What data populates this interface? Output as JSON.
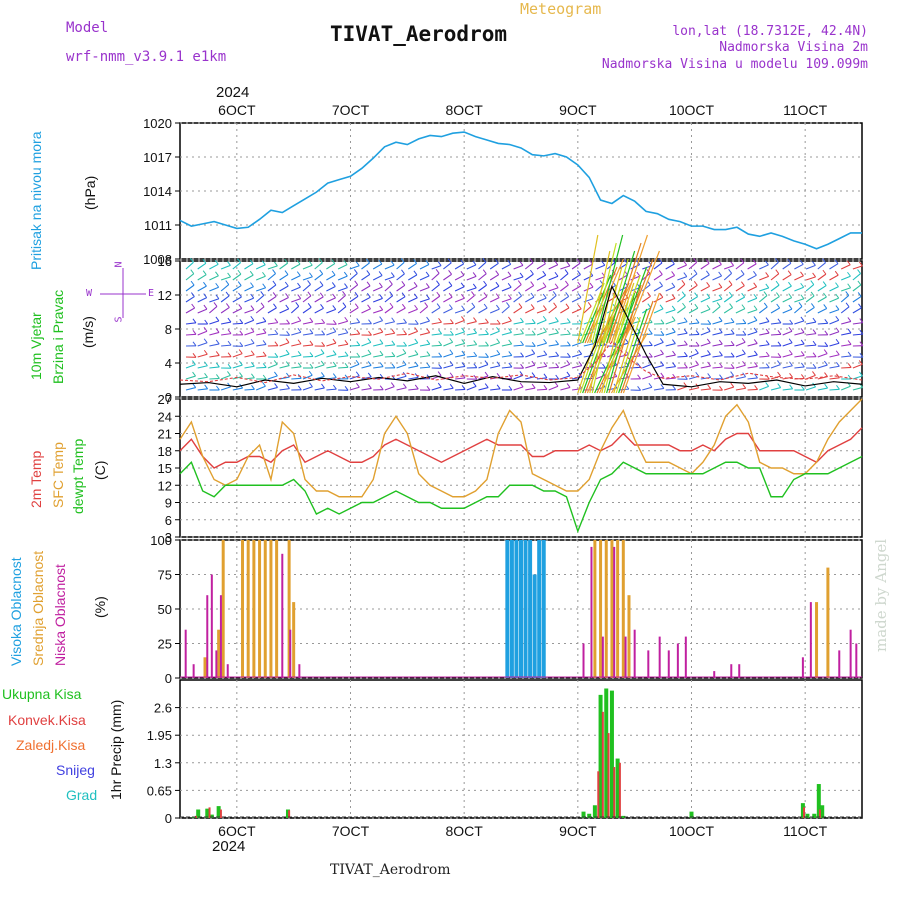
{
  "header": {
    "model_label": "Model",
    "model_name": "wrf-nmm_v3.9.1  e1km",
    "meteogram": "Meteogram",
    "station": "TIVAT_Aerodrom",
    "lonlat": "lon,lat (18.7312E, 42.4N)",
    "elev": "Nadmorska Visina 2m",
    "elev_model": "Nadmorska Visina u modelu 109.099m",
    "year_top": "2024",
    "year_bottom": "2024",
    "footer_station": "TIVAT_Aerodrom",
    "made_by": "made by Angel"
  },
  "colors": {
    "pressure": "#1fa0e0",
    "temp2m": "#e04040",
    "sfc": "#e0a030",
    "dewpt": "#20c020",
    "high_cloud": "#1fa0e0",
    "mid_cloud": "#e0a030",
    "low_cloud": "#c020a0",
    "total_precip": "#20c020",
    "conv_precip": "#e04040"
  },
  "axis_labels": {
    "pressure": [
      "Pritisak na nivou mora",
      "(hPa)"
    ],
    "wind": [
      "10m Vjetar",
      "Brzina i Pravac",
      "(m/s)"
    ],
    "compass": [
      "N",
      "W",
      "E",
      "S"
    ],
    "temp": [
      "2m Temp",
      "SFC Temp",
      "dewpt Temp",
      "(C)"
    ],
    "cloud": [
      "Visoka Oblacnost",
      "Srednja Oblacnost",
      "Niska Oblacnost",
      "(%)"
    ],
    "precip_unit": "1hr Precip (mm)",
    "precip_legend": [
      "Ukupna Kisa",
      "Konvek.Kisa",
      "Zaledj.Kisa",
      "Snijeg",
      "Grad"
    ]
  },
  "chart_data": [
    {
      "type": "line",
      "name": "pressure",
      "xticks": [
        "6OCT",
        "7OCT",
        "8OCT",
        "9OCT",
        "10OCT",
        "11OCT"
      ],
      "ylim": [
        1008,
        1020
      ],
      "yticks": [
        1008,
        1011,
        1014,
        1017,
        1020
      ],
      "x": [
        5.5,
        5.6,
        5.7,
        5.8,
        5.9,
        6.0,
        6.1,
        6.2,
        6.3,
        6.4,
        6.5,
        6.6,
        6.7,
        6.8,
        6.9,
        7.0,
        7.1,
        7.2,
        7.3,
        7.4,
        7.5,
        7.6,
        7.7,
        7.8,
        7.9,
        8.0,
        8.1,
        8.2,
        8.3,
        8.4,
        8.5,
        8.6,
        8.7,
        8.8,
        8.9,
        9.0,
        9.1,
        9.2,
        9.3,
        9.4,
        9.5,
        9.6,
        9.7,
        9.8,
        9.9,
        10.0,
        10.1,
        10.2,
        10.3,
        10.4,
        10.5,
        10.6,
        10.7,
        10.8,
        10.9,
        11.0,
        11.1,
        11.2,
        11.3,
        11.4,
        11.5
      ],
      "series": [
        {
          "values": [
            1011.4,
            1010.9,
            1011.1,
            1011.3,
            1011.0,
            1010.7,
            1010.8,
            1011.5,
            1012.3,
            1012.1,
            1012.7,
            1013.3,
            1013.9,
            1014.7,
            1015.0,
            1015.3,
            1016.0,
            1016.9,
            1017.9,
            1018.3,
            1018.1,
            1018.6,
            1018.9,
            1018.8,
            1019.1,
            1019.2,
            1018.8,
            1018.5,
            1018.2,
            1018.1,
            1017.8,
            1017.2,
            1017.1,
            1017.3,
            1017.0,
            1016.3,
            1015.2,
            1013.2,
            1012.9,
            1013.6,
            1013.1,
            1012.2,
            1012.0,
            1011.5,
            1011.3,
            1010.9,
            1010.9,
            1010.6,
            1010.6,
            1010.8,
            1010.2,
            1010.0,
            1010.3,
            1010.0,
            1009.6,
            1009.3,
            1008.9,
            1009.3,
            1009.8,
            1010.3,
            1010.3
          ]
        }
      ]
    },
    {
      "type": "line",
      "name": "wind",
      "ylim": [
        0,
        16
      ],
      "yticks": [
        0,
        4,
        8,
        12,
        16
      ],
      "yticklabels": [
        "0",
        "4",
        "8",
        "12",
        "16"
      ],
      "x": [
        5.5,
        5.75,
        6.0,
        6.25,
        6.5,
        6.75,
        7.0,
        7.25,
        7.5,
        7.75,
        8.0,
        8.25,
        8.5,
        8.75,
        9.0,
        9.15,
        9.3,
        9.45,
        9.6,
        9.75,
        10.0,
        10.25,
        10.5,
        10.75,
        11.0,
        11.25,
        11.5
      ],
      "series": [
        {
          "values": [
            1.5,
            1.7,
            1.2,
            2.0,
            1.6,
            2.2,
            1.8,
            2.3,
            1.9,
            2.5,
            1.6,
            2.4,
            1.8,
            1.7,
            2.0,
            6.0,
            13.0,
            9.0,
            5.0,
            1.5,
            1.2,
            1.8,
            1.6,
            2.0,
            1.3,
            1.8,
            1.5
          ]
        },
        {
          "values": [
            2.0,
            1.8,
            2.3,
            1.7,
            2.6,
            1.9,
            2.4,
            2.1,
            2.8,
            2.0,
            2.5,
            2.2,
            2.6,
            2.0,
            2.3,
            4.0,
            6.5,
            4.5,
            3.0,
            2.2,
            2.5,
            2.0,
            2.8,
            2.3,
            2.1,
            2.5,
            2.0
          ]
        }
      ]
    },
    {
      "type": "line",
      "name": "temperature",
      "ylim": [
        3,
        27
      ],
      "yticks": [
        3,
        6,
        9,
        12,
        15,
        18,
        21,
        24,
        27
      ],
      "x": [
        5.5,
        5.6,
        5.7,
        5.8,
        5.9,
        6.0,
        6.1,
        6.2,
        6.3,
        6.4,
        6.5,
        6.6,
        6.7,
        6.8,
        6.9,
        7.0,
        7.1,
        7.2,
        7.3,
        7.4,
        7.5,
        7.6,
        7.7,
        7.8,
        7.9,
        8.0,
        8.1,
        8.2,
        8.3,
        8.4,
        8.5,
        8.6,
        8.7,
        8.8,
        8.9,
        9.0,
        9.1,
        9.2,
        9.3,
        9.4,
        9.5,
        9.6,
        9.7,
        9.8,
        9.9,
        10.0,
        10.1,
        10.2,
        10.3,
        10.4,
        10.5,
        10.6,
        10.7,
        10.8,
        10.9,
        11.0,
        11.1,
        11.2,
        11.3,
        11.4,
        11.5
      ],
      "series": [
        {
          "values": [
            18,
            20,
            17,
            15,
            16,
            16,
            17,
            17,
            16,
            18,
            19,
            16,
            17,
            18,
            17,
            16,
            16,
            17,
            19,
            20,
            19,
            18,
            17,
            16,
            17,
            18,
            19,
            20,
            19,
            19,
            19,
            17,
            17,
            18,
            18,
            18,
            19,
            18,
            19,
            21,
            19,
            19,
            19,
            19,
            18,
            18,
            19,
            18,
            20,
            21,
            21,
            18,
            18,
            18,
            18,
            17,
            16,
            18,
            19,
            20,
            22
          ]
        },
        {
          "values": [
            20,
            23,
            17,
            13,
            12,
            13,
            17,
            19,
            13,
            23,
            21,
            13,
            11,
            11,
            10,
            10,
            10,
            13,
            21,
            24,
            21,
            14,
            12,
            11,
            10,
            10,
            11,
            13,
            21,
            25,
            23,
            14,
            13,
            12,
            11,
            11,
            13,
            18,
            22,
            25,
            20,
            16,
            16,
            16,
            15,
            14,
            16,
            19,
            24,
            26,
            23,
            16,
            15,
            15,
            14,
            14,
            16,
            20,
            23,
            25,
            27
          ]
        },
        {
          "values": [
            14,
            16,
            11,
            10,
            12,
            12,
            12,
            12,
            12,
            12,
            13,
            11,
            7,
            8,
            7,
            8,
            9,
            9,
            10,
            11,
            10,
            9,
            9,
            8,
            8,
            8,
            9,
            10,
            10,
            12,
            12,
            12,
            11,
            11,
            10,
            4,
            9,
            13,
            14,
            16,
            15,
            14,
            14,
            14,
            14,
            14,
            14,
            15,
            16,
            16,
            15,
            15,
            10,
            10,
            13,
            14,
            14,
            14,
            15,
            16,
            17
          ]
        }
      ]
    },
    {
      "type": "bar",
      "name": "cloudiness",
      "ylim": [
        0,
        100
      ],
      "yticks": [
        0,
        25,
        50,
        75,
        100
      ],
      "series": [
        {
          "x": [
            8.38,
            8.42,
            8.46,
            8.5,
            8.54,
            8.58,
            8.62,
            8.66,
            8.7
          ],
          "values": [
            100,
            100,
            100,
            100,
            100,
            100,
            75,
            100,
            100
          ]
        },
        {
          "x": [
            5.72,
            5.84,
            5.88,
            6.05,
            6.1,
            6.15,
            6.2,
            6.25,
            6.3,
            6.35,
            6.46,
            6.5,
            9.15,
            9.2,
            9.25,
            9.3,
            9.35,
            9.4,
            9.45,
            11.1,
            11.2
          ],
          "values": [
            15,
            35,
            100,
            100,
            100,
            100,
            100,
            100,
            100,
            100,
            100,
            55,
            100,
            100,
            100,
            100,
            100,
            100,
            60,
            55,
            80
          ]
        },
        {
          "x": [
            5.55,
            5.62,
            5.74,
            5.78,
            5.82,
            5.86,
            5.92,
            6.4,
            6.47,
            6.55,
            9.05,
            9.12,
            9.22,
            9.32,
            9.42,
            9.5,
            9.62,
            9.72,
            9.8,
            9.88,
            9.95,
            10.2,
            10.35,
            10.42,
            10.98,
            11.05,
            11.3,
            11.4,
            11.45
          ],
          "values": [
            35,
            10,
            60,
            75,
            20,
            60,
            10,
            90,
            35,
            10,
            25,
            95,
            30,
            95,
            30,
            35,
            20,
            30,
            20,
            25,
            30,
            5,
            10,
            10,
            15,
            55,
            20,
            35,
            25
          ]
        }
      ]
    },
    {
      "type": "bar",
      "name": "precipitation",
      "ylim": [
        0,
        3.25
      ],
      "yticks": [
        0,
        0.65,
        1.3,
        1.95,
        2.6
      ],
      "series": [
        {
          "x": [
            5.62,
            5.66,
            5.74,
            5.78,
            5.84,
            6.45,
            9.05,
            9.1,
            9.15,
            9.2,
            9.25,
            9.3,
            9.35,
            9.4,
            10.0,
            10.98,
            11.02,
            11.08,
            11.12,
            11.15
          ],
          "values": [
            0.02,
            0.2,
            0.22,
            0.08,
            0.28,
            0.2,
            0.15,
            0.1,
            0.3,
            2.9,
            3.05,
            3.0,
            1.4,
            0.05,
            0.15,
            0.35,
            0.1,
            0.1,
            0.8,
            0.3
          ]
        },
        {
          "x": [
            5.64,
            5.76,
            5.86,
            6.46,
            9.18,
            9.22,
            9.27,
            9.32,
            9.37,
            10.99,
            11.13
          ],
          "values": [
            0.05,
            0.25,
            0.2,
            0.18,
            1.1,
            2.5,
            2.0,
            1.2,
            1.3,
            0.25,
            0.2
          ]
        }
      ]
    }
  ]
}
